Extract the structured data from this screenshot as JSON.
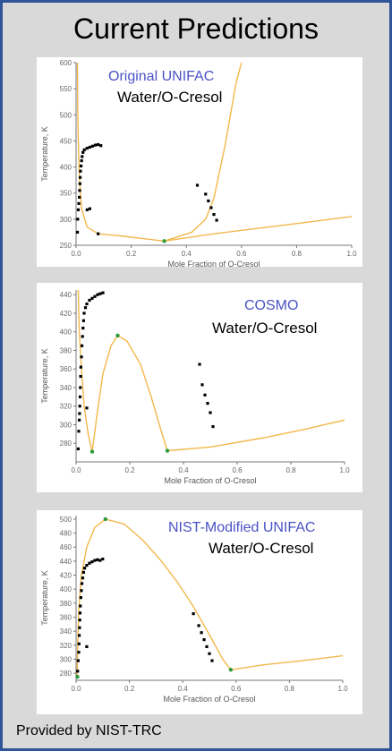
{
  "page": {
    "title": "Current Predictions",
    "footer": "Provided by NIST-TRC"
  },
  "colors": {
    "curve": "#f2b84b",
    "points": "#000000",
    "green_points": "#2e9a3a",
    "model_label": "#4a53c4",
    "border": "#2f5597"
  },
  "chart_data": [
    {
      "type": "scatter",
      "model_label": "Original UNIFAC",
      "system_label": "Water/O-Cresol",
      "xlabel": "Mole Fraction of O-Cresol",
      "ylabel": "Temperature, K",
      "xlim": [
        0,
        1.0
      ],
      "ylim": [
        250,
        600
      ],
      "xticks": [
        0.0,
        0.2,
        0.4,
        0.6,
        0.8,
        1.0
      ],
      "xtick_labels": [
        "0.0",
        "0.2",
        "0.4",
        "0.6",
        "0.8",
        "1.0"
      ],
      "yticks": [
        250,
        300,
        350,
        400,
        450,
        500,
        550,
        600
      ],
      "ytick_labels": [
        "250",
        "300",
        "350",
        "400",
        "450",
        "500",
        "550",
        "600"
      ],
      "grid": false,
      "series": [
        {
          "kind": "curve",
          "values": [
            [
              0.005,
              600
            ],
            [
              0.006,
              520
            ],
            [
              0.008,
              450
            ],
            [
              0.012,
              380
            ],
            [
              0.02,
              320
            ],
            [
              0.04,
              285
            ],
            [
              0.08,
              272
            ]
          ]
        },
        {
          "kind": "curve",
          "values": [
            [
              0.08,
              272
            ],
            [
              0.16,
              268
            ],
            [
              0.24,
              263
            ],
            [
              0.32,
              258
            ]
          ]
        },
        {
          "kind": "curve",
          "values": [
            [
              0.32,
              258
            ],
            [
              0.42,
              275
            ],
            [
              0.47,
              300
            ],
            [
              0.5,
              340
            ],
            [
              0.52,
              390
            ],
            [
              0.54,
              440
            ],
            [
              0.56,
              500
            ],
            [
              0.58,
              560
            ],
            [
              0.6,
              600
            ]
          ]
        },
        {
          "kind": "curve",
          "values": [
            [
              0.32,
              258
            ],
            [
              0.5,
              272
            ],
            [
              0.7,
              285
            ],
            [
              0.85,
              295
            ],
            [
              1.0,
              305
            ]
          ]
        },
        {
          "kind": "points",
          "values": [
            [
              0.005,
              275
            ],
            [
              0.006,
              300
            ],
            [
              0.008,
              318
            ],
            [
              0.01,
              330
            ],
            [
              0.012,
              342
            ],
            [
              0.013,
              355
            ],
            [
              0.014,
              368
            ],
            [
              0.015,
              380
            ],
            [
              0.016,
              392
            ],
            [
              0.018,
              402
            ],
            [
              0.02,
              412
            ],
            [
              0.022,
              420
            ],
            [
              0.025,
              428
            ],
            [
              0.03,
              433
            ],
            [
              0.04,
              436
            ],
            [
              0.05,
              438
            ],
            [
              0.06,
              440
            ],
            [
              0.07,
              442
            ],
            [
              0.08,
              443
            ],
            [
              0.09,
              441
            ],
            [
              0.04,
              318
            ],
            [
              0.05,
              320
            ],
            [
              0.08,
              272
            ],
            [
              0.44,
              365
            ],
            [
              0.47,
              348
            ],
            [
              0.48,
              335
            ],
            [
              0.49,
              322
            ],
            [
              0.5,
              309
            ],
            [
              0.51,
              298
            ]
          ]
        },
        {
          "kind": "green",
          "values": [
            [
              0.32,
              258
            ]
          ]
        }
      ]
    },
    {
      "type": "scatter",
      "model_label": "COSMO",
      "system_label": "Water/O-Cresol",
      "xlabel": "Mole Fraction of O-Cresol",
      "ylabel": "Temperature, K",
      "xlim": [
        0,
        1.0
      ],
      "ylim": [
        260,
        445
      ],
      "xticks": [
        0.0,
        0.2,
        0.4,
        0.6,
        0.8,
        1.0
      ],
      "xtick_labels": [
        "0.0",
        "0.2",
        "0.4",
        "0.6",
        "0.8",
        "1.0"
      ],
      "yticks": [
        280,
        300,
        320,
        340,
        360,
        380,
        400,
        420,
        440
      ],
      "ytick_labels": [
        "280",
        "300",
        "320",
        "340",
        "360",
        "380",
        "400",
        "420",
        "440"
      ],
      "grid": false,
      "series": [
        {
          "kind": "curve",
          "values": [
            [
              0.008,
              445
            ],
            [
              0.012,
              400
            ],
            [
              0.02,
              360
            ],
            [
              0.03,
              320
            ],
            [
              0.045,
              290
            ],
            [
              0.06,
              271
            ]
          ]
        },
        {
          "kind": "curve",
          "values": [
            [
              0.06,
              271
            ],
            [
              0.08,
              315
            ],
            [
              0.1,
              355
            ],
            [
              0.13,
              385
            ],
            [
              0.155,
              396
            ],
            [
              0.19,
              390
            ],
            [
              0.24,
              365
            ],
            [
              0.28,
              330
            ],
            [
              0.31,
              300
            ],
            [
              0.34,
              272
            ]
          ]
        },
        {
          "kind": "curve",
          "values": [
            [
              0.34,
              272
            ],
            [
              0.5,
              276
            ],
            [
              0.7,
              286
            ],
            [
              0.85,
              295
            ],
            [
              1.0,
              305
            ]
          ]
        },
        {
          "kind": "points",
          "values": [
            [
              0.008,
              274
            ],
            [
              0.01,
              293
            ],
            [
              0.012,
              305
            ],
            [
              0.013,
              312
            ],
            [
              0.014,
              320
            ],
            [
              0.015,
              330
            ],
            [
              0.016,
              340
            ],
            [
              0.017,
              352
            ],
            [
              0.018,
              362
            ],
            [
              0.02,
              373
            ],
            [
              0.022,
              385
            ],
            [
              0.024,
              395
            ],
            [
              0.026,
              404
            ],
            [
              0.028,
              412
            ],
            [
              0.03,
              420
            ],
            [
              0.035,
              426
            ],
            [
              0.04,
              430
            ],
            [
              0.05,
              434
            ],
            [
              0.06,
              436
            ],
            [
              0.07,
              438
            ],
            [
              0.08,
              440
            ],
            [
              0.09,
              441
            ],
            [
              0.1,
              442
            ],
            [
              0.04,
              318
            ],
            [
              0.46,
              365
            ],
            [
              0.47,
              343
            ],
            [
              0.48,
              332
            ],
            [
              0.49,
              323
            ],
            [
              0.5,
              313
            ],
            [
              0.51,
              298
            ]
          ]
        },
        {
          "kind": "green",
          "values": [
            [
              0.06,
              271
            ],
            [
              0.155,
              396
            ],
            [
              0.34,
              272
            ]
          ]
        }
      ]
    },
    {
      "type": "scatter",
      "model_label": "NIST-Modified UNIFAC",
      "system_label": "Water/O-Cresol",
      "xlabel": "Mole Fraction of O-Cresol",
      "ylabel": "Temperature, K",
      "xlim": [
        0,
        1.0
      ],
      "ylim": [
        270,
        505
      ],
      "xticks": [
        0.0,
        0.2,
        0.4,
        0.6,
        0.8,
        1.0
      ],
      "xtick_labels": [
        "0.0",
        "0.2",
        "0.4",
        "0.6",
        "0.8",
        "1.0"
      ],
      "yticks": [
        280,
        300,
        320,
        340,
        360,
        380,
        400,
        420,
        440,
        460,
        480,
        500
      ],
      "ytick_labels": [
        "280",
        "300",
        "320",
        "340",
        "360",
        "380",
        "400",
        "420",
        "440",
        "460",
        "480",
        "500"
      ],
      "grid": false,
      "series": [
        {
          "kind": "curve",
          "values": [
            [
              0.004,
              275
            ],
            [
              0.006,
              320
            ],
            [
              0.01,
              370
            ],
            [
              0.02,
              420
            ],
            [
              0.04,
              460
            ],
            [
              0.07,
              488
            ],
            [
              0.11,
              500
            ]
          ]
        },
        {
          "kind": "curve",
          "values": [
            [
              0.11,
              500
            ],
            [
              0.18,
              493
            ],
            [
              0.25,
              470
            ],
            [
              0.32,
              440
            ],
            [
              0.38,
              410
            ],
            [
              0.44,
              375
            ],
            [
              0.5,
              335
            ],
            [
              0.55,
              300
            ],
            [
              0.58,
              285
            ]
          ]
        },
        {
          "kind": "curve",
          "values": [
            [
              0.58,
              285
            ],
            [
              0.7,
              292
            ],
            [
              0.85,
              298
            ],
            [
              1.0,
              305
            ]
          ]
        },
        {
          "kind": "points",
          "values": [
            [
              0.006,
              283
            ],
            [
              0.008,
              298
            ],
            [
              0.01,
              310
            ],
            [
              0.011,
              322
            ],
            [
              0.012,
              334
            ],
            [
              0.013,
              345
            ],
            [
              0.014,
              356
            ],
            [
              0.015,
              366
            ],
            [
              0.016,
              376
            ],
            [
              0.018,
              388
            ],
            [
              0.02,
              398
            ],
            [
              0.022,
              408
            ],
            [
              0.025,
              416
            ],
            [
              0.028,
              424
            ],
            [
              0.032,
              430
            ],
            [
              0.04,
              434
            ],
            [
              0.05,
              437
            ],
            [
              0.06,
              439
            ],
            [
              0.07,
              441
            ],
            [
              0.08,
              442
            ],
            [
              0.09,
              441
            ],
            [
              0.1,
              443
            ],
            [
              0.04,
              318
            ],
            [
              0.44,
              365
            ],
            [
              0.46,
              348
            ],
            [
              0.47,
              338
            ],
            [
              0.48,
              328
            ],
            [
              0.49,
              318
            ],
            [
              0.5,
              308
            ],
            [
              0.51,
              298
            ]
          ]
        },
        {
          "kind": "green",
          "values": [
            [
              0.005,
              275
            ],
            [
              0.11,
              500
            ],
            [
              0.58,
              285
            ]
          ]
        }
      ]
    }
  ]
}
